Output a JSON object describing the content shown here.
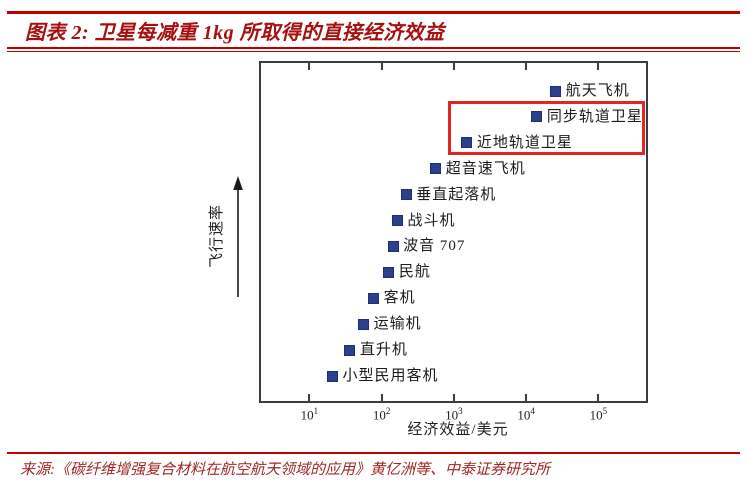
{
  "header": {
    "title": "图表 2:  卫星每减重 1kg 所取得的直接经济效益"
  },
  "footer": {
    "source": "来源:《碳纤维增强复合材料在航空航天领域的应用》黄亿洲等、中泰证券研究所"
  },
  "colors": {
    "rule_red": "#c00000",
    "title_red": "#a80f0f",
    "marker_blue": "#2b3f8e",
    "highlight_box_red": "#e52620",
    "axis_gray": "#3c3c3c"
  },
  "chart_data": {
    "type": "scatter",
    "title": "",
    "xlabel": "经济效益/美元",
    "ylabel": "飞行速率",
    "x_scale": "log10",
    "xlim_log10": [
      0.33,
      5.66
    ],
    "grid": false,
    "legend": "none",
    "y_axis": {
      "label": "飞行速率",
      "ticks": "none",
      "direction": "increasing-upward-arrow"
    },
    "x_ticks": [
      {
        "log10": 1,
        "base": "10",
        "exp": "1"
      },
      {
        "log10": 2,
        "base": "10",
        "exp": "2"
      },
      {
        "log10": 3,
        "base": "10",
        "exp": "3"
      },
      {
        "log10": 4,
        "base": "10",
        "exp": "4"
      },
      {
        "log10": 5,
        "base": "10",
        "exp": "5"
      }
    ],
    "points": [
      {
        "label": "航天飞机",
        "x_usd": 26000,
        "x_log10": 4.41,
        "y_rank": 12,
        "highlighted": false
      },
      {
        "label": "同步轨道卫星",
        "x_usd": 14000,
        "x_log10": 4.15,
        "y_rank": 11,
        "highlighted": true
      },
      {
        "label": "近地轨道卫星",
        "x_usd": 1500,
        "x_log10": 3.18,
        "y_rank": 10,
        "highlighted": true
      },
      {
        "label": "超音速飞机",
        "x_usd": 560,
        "x_log10": 2.75,
        "y_rank": 9,
        "highlighted": false
      },
      {
        "label": "垂直起落机",
        "x_usd": 220,
        "x_log10": 2.34,
        "y_rank": 8,
        "highlighted": false
      },
      {
        "label": "战斗机",
        "x_usd": 165,
        "x_log10": 2.22,
        "y_rank": 7,
        "highlighted": false
      },
      {
        "label": "波音 707",
        "x_usd": 145,
        "x_log10": 2.16,
        "y_rank": 6,
        "highlighted": false
      },
      {
        "label": "民航",
        "x_usd": 125,
        "x_log10": 2.1,
        "y_rank": 5,
        "highlighted": false
      },
      {
        "label": "客机",
        "x_usd": 78,
        "x_log10": 1.89,
        "y_rank": 4,
        "highlighted": false
      },
      {
        "label": "运输机",
        "x_usd": 56,
        "x_log10": 1.75,
        "y_rank": 3,
        "highlighted": false
      },
      {
        "label": "直升机",
        "x_usd": 36,
        "x_log10": 1.56,
        "y_rank": 2,
        "highlighted": false
      },
      {
        "label": "小型民用客机",
        "x_usd": 21,
        "x_log10": 1.32,
        "y_rank": 1,
        "highlighted": false
      }
    ],
    "annotations": {
      "highlight_box_labels": [
        "同步轨道卫星",
        "近地轨道卫星"
      ]
    }
  }
}
